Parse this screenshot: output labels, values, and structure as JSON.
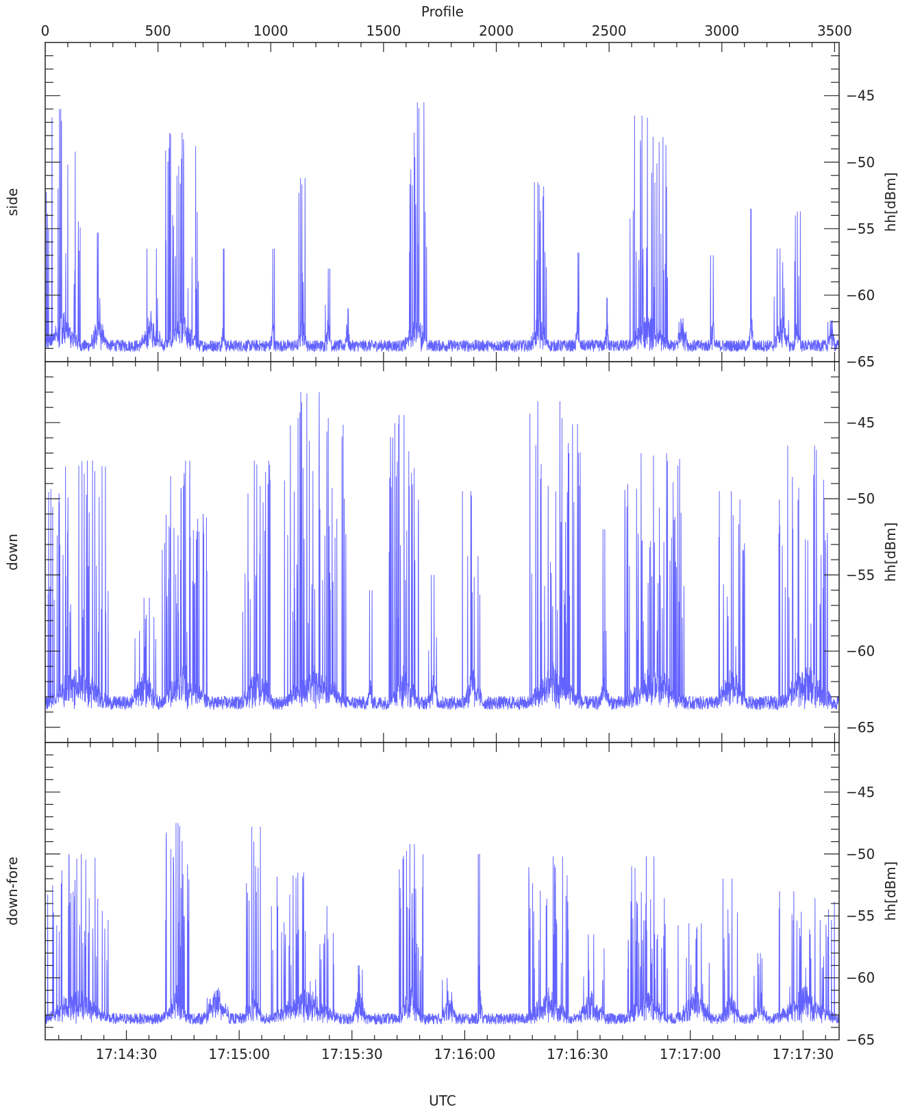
{
  "chart_data": {
    "type": "line",
    "top_axis": {
      "label": "Profile",
      "range": [
        0,
        3520
      ],
      "ticks": [
        0,
        500,
        1000,
        1500,
        2000,
        2500,
        3000,
        3500
      ],
      "tick_labels": [
        "0",
        "500",
        "1000",
        "1500",
        "2000",
        "2500",
        "3000",
        "3500"
      ]
    },
    "bottom_axis": {
      "label": "UTC",
      "tick_labels": [
        "17:14:30",
        "17:15:00",
        "17:15:30",
        "17:16:00",
        "17:16:30",
        "17:17:00",
        "17:17:30"
      ],
      "tick_profiles": [
        360,
        860,
        1360,
        1860,
        2360,
        2860,
        3360
      ]
    },
    "color": "#6262ff",
    "panels": [
      {
        "name": "side",
        "ylabel": "hh[dBm]",
        "ylim": [
          -65,
          -41
        ],
        "yticks": [
          -45,
          -50,
          -55,
          -60,
          -65
        ],
        "baseline": -63.8,
        "bursts": [
          {
            "start": 0,
            "end": 160,
            "peak": -46.0,
            "count": 20
          },
          {
            "start": 200,
            "end": 280,
            "peak": -55.3,
            "count": 4
          },
          {
            "start": 420,
            "end": 520,
            "peak": -56.5,
            "count": 3
          },
          {
            "start": 530,
            "end": 680,
            "peak": -47.8,
            "count": 26
          },
          {
            "start": 780,
            "end": 800,
            "peak": -56.5,
            "count": 1
          },
          {
            "start": 1000,
            "end": 1020,
            "peak": -56.5,
            "count": 1
          },
          {
            "start": 1120,
            "end": 1160,
            "peak": -51.2,
            "count": 5
          },
          {
            "start": 1240,
            "end": 1270,
            "peak": -58.0,
            "count": 3
          },
          {
            "start": 1330,
            "end": 1350,
            "peak": -61.0,
            "count": 1
          },
          {
            "start": 1590,
            "end": 1700,
            "peak": -45.5,
            "count": 20
          },
          {
            "start": 2150,
            "end": 2230,
            "peak": -51.5,
            "count": 10
          },
          {
            "start": 2350,
            "end": 2370,
            "peak": -56.8,
            "count": 1
          },
          {
            "start": 2480,
            "end": 2500,
            "peak": -60.2,
            "count": 1
          },
          {
            "start": 2590,
            "end": 2760,
            "peak": -46.5,
            "count": 28
          },
          {
            "start": 2800,
            "end": 2850,
            "peak": -61.8,
            "count": 2
          },
          {
            "start": 2950,
            "end": 2970,
            "peak": -57.0,
            "count": 1
          },
          {
            "start": 3120,
            "end": 3140,
            "peak": -53.5,
            "count": 1
          },
          {
            "start": 3230,
            "end": 3300,
            "peak": -56.5,
            "count": 7
          },
          {
            "start": 3320,
            "end": 3350,
            "peak": -53.7,
            "count": 4
          },
          {
            "start": 3470,
            "end": 3500,
            "peak": -62.0,
            "count": 2
          }
        ]
      },
      {
        "name": "down",
        "ylabel": "hh[dBm]",
        "ylim": [
          -66,
          -41
        ],
        "yticks": [
          -45,
          -50,
          -55,
          -60,
          -65
        ],
        "baseline": -63.4,
        "bursts": [
          {
            "start": 10,
            "end": 280,
            "peak": -47.5,
            "count": 42
          },
          {
            "start": 380,
            "end": 500,
            "peak": -56.5,
            "count": 8
          },
          {
            "start": 510,
            "end": 720,
            "peak": -47.5,
            "count": 40
          },
          {
            "start": 870,
            "end": 1010,
            "peak": -47.5,
            "count": 22
          },
          {
            "start": 1050,
            "end": 1340,
            "peak": -43.0,
            "count": 45
          },
          {
            "start": 1430,
            "end": 1450,
            "peak": -56.0,
            "count": 1
          },
          {
            "start": 1520,
            "end": 1660,
            "peak": -44.5,
            "count": 30
          },
          {
            "start": 1700,
            "end": 1740,
            "peak": -55.0,
            "count": 3
          },
          {
            "start": 1850,
            "end": 1940,
            "peak": -49.5,
            "count": 7
          },
          {
            "start": 2140,
            "end": 2380,
            "peak": -43.6,
            "count": 34
          },
          {
            "start": 2460,
            "end": 2500,
            "peak": -52.0,
            "count": 3
          },
          {
            "start": 2570,
            "end": 2840,
            "peak": -47.0,
            "count": 48
          },
          {
            "start": 2980,
            "end": 3110,
            "peak": -49.5,
            "count": 16
          },
          {
            "start": 3250,
            "end": 3500,
            "peak": -46.5,
            "count": 32
          }
        ]
      },
      {
        "name": "down-fore",
        "ylabel": "hh[dBm]",
        "ylim": [
          -65,
          -41
        ],
        "yticks": [
          -45,
          -50,
          -55,
          -60,
          -65
        ],
        "baseline": -63.3,
        "bursts": [
          {
            "start": 0,
            "end": 280,
            "peak": -50.0,
            "count": 34
          },
          {
            "start": 520,
            "end": 640,
            "peak": -47.5,
            "count": 22
          },
          {
            "start": 700,
            "end": 820,
            "peak": -61.0,
            "count": 6
          },
          {
            "start": 880,
            "end": 960,
            "peak": -47.8,
            "count": 12
          },
          {
            "start": 1000,
            "end": 1300,
            "peak": -51.5,
            "count": 36
          },
          {
            "start": 1360,
            "end": 1420,
            "peak": -59.0,
            "count": 4
          },
          {
            "start": 1560,
            "end": 1680,
            "peak": -49.2,
            "count": 24
          },
          {
            "start": 1760,
            "end": 1820,
            "peak": -60.0,
            "count": 3
          },
          {
            "start": 1920,
            "end": 1940,
            "peak": -50.0,
            "count": 2
          },
          {
            "start": 2140,
            "end": 2320,
            "peak": -50.2,
            "count": 26
          },
          {
            "start": 2360,
            "end": 2480,
            "peak": -56.5,
            "count": 8
          },
          {
            "start": 2580,
            "end": 2760,
            "peak": -50.2,
            "count": 40
          },
          {
            "start": 2800,
            "end": 2960,
            "peak": -55.6,
            "count": 10
          },
          {
            "start": 3000,
            "end": 3080,
            "peak": -52.0,
            "count": 6
          },
          {
            "start": 3140,
            "end": 3200,
            "peak": -58.0,
            "count": 4
          },
          {
            "start": 3240,
            "end": 3500,
            "peak": -53.0,
            "count": 30
          }
        ]
      }
    ]
  }
}
